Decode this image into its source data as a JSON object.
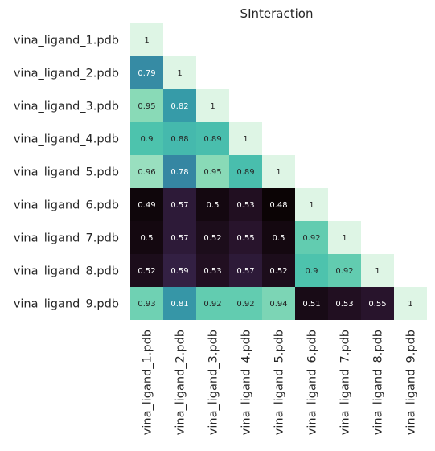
{
  "chart_data": {
    "type": "heatmap",
    "title": "SInteraction",
    "xlabel": "",
    "ylabel": "",
    "labels": [
      "vina_ligand_1.pdb",
      "vina_ligand_2.pdb",
      "vina_ligand_3.pdb",
      "vina_ligand_4.pdb",
      "vina_ligand_5.pdb",
      "vina_ligand_6.pdb",
      "vina_ligand_7.pdb",
      "vina_ligand_8.pdb",
      "vina_ligand_9.pdb"
    ],
    "matrix": [
      [
        1
      ],
      [
        0.79,
        1
      ],
      [
        0.95,
        0.82,
        1
      ],
      [
        0.9,
        0.88,
        0.89,
        1
      ],
      [
        0.96,
        0.78,
        0.95,
        0.89,
        1
      ],
      [
        0.49,
        0.57,
        0.5,
        0.53,
        0.48,
        1
      ],
      [
        0.5,
        0.57,
        0.52,
        0.55,
        0.5,
        0.92,
        1
      ],
      [
        0.52,
        0.59,
        0.53,
        0.57,
        0.52,
        0.9,
        0.92,
        1
      ],
      [
        0.93,
        0.81,
        0.92,
        0.92,
        0.94,
        0.51,
        0.53,
        0.55,
        1
      ]
    ],
    "triangle": "lower",
    "colormap": "mako",
    "value_range": [
      0.48,
      1
    ],
    "colorbar": false,
    "grid": false
  }
}
